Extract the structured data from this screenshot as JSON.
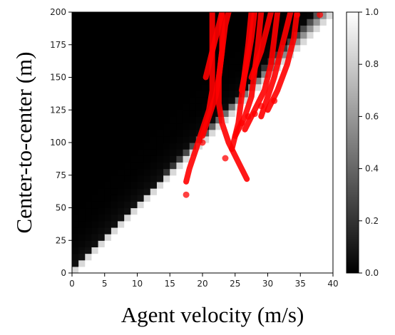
{
  "chart_data": {
    "type": "heatmap",
    "title": "",
    "xlabel": "Agent velocity (m/s)",
    "ylabel": "Center-to-center (m)",
    "xlim": [
      0,
      40
    ],
    "ylim": [
      0,
      200
    ],
    "x_ticks": [
      "0",
      "5",
      "10",
      "15",
      "20",
      "25",
      "30",
      "35",
      "40"
    ],
    "y_ticks": [
      "0",
      "25",
      "50",
      "75",
      "100",
      "125",
      "150",
      "175",
      "200"
    ],
    "grid": false,
    "legend": "none",
    "heatmap": {
      "colormap": "gray",
      "description_regions": [
        {
          "note": "lower-right boundary",
          "slope_m_per_mps": 5.0,
          "intercept_m": 0,
          "value_below": 1.0
        },
        {
          "note": "upper-left light band",
          "value": 0.8
        }
      ],
      "grid_cols": 40,
      "grid_rows": 40
    },
    "colorbar": {
      "range": [
        0.0,
        1.0
      ],
      "ticks": [
        "0.0",
        "0.2",
        "0.4",
        "0.6",
        "0.8",
        "1.0"
      ]
    },
    "overlay": {
      "name": "",
      "color": "#ff0000",
      "trajectories": [
        [
          [
            17.5,
            70
          ],
          [
            18,
            80
          ],
          [
            19,
            95
          ],
          [
            20,
            110
          ],
          [
            21,
            125
          ],
          [
            21.5,
            140
          ],
          [
            21.5,
            160
          ],
          [
            21.5,
            180
          ],
          [
            21.5,
            200
          ]
        ],
        [
          [
            20,
            105
          ],
          [
            21,
            120
          ],
          [
            22,
            135
          ],
          [
            22.5,
            150
          ],
          [
            23,
            170
          ],
          [
            23.5,
            190
          ],
          [
            24,
            200
          ]
        ],
        [
          [
            26.8,
            72
          ],
          [
            25.5,
            85
          ],
          [
            24,
            100
          ],
          [
            23,
            115
          ],
          [
            22.5,
            130
          ],
          [
            22.5,
            150
          ],
          [
            23,
            170
          ],
          [
            23,
            200
          ]
        ],
        [
          [
            24.5,
            95
          ],
          [
            25.5,
            115
          ],
          [
            26,
            135
          ],
          [
            26.5,
            155
          ],
          [
            27,
            175
          ],
          [
            27.5,
            200
          ]
        ],
        [
          [
            25,
            105
          ],
          [
            26.5,
            120
          ],
          [
            27.5,
            135
          ],
          [
            28,
            155
          ],
          [
            28.5,
            175
          ],
          [
            29,
            200
          ]
        ],
        [
          [
            26.5,
            110
          ],
          [
            28,
            125
          ],
          [
            29.5,
            140
          ],
          [
            30.5,
            160
          ],
          [
            31,
            180
          ],
          [
            31.5,
            200
          ]
        ],
        [
          [
            29,
            120
          ],
          [
            30,
            135
          ],
          [
            31,
            150
          ],
          [
            32,
            170
          ],
          [
            33,
            190
          ],
          [
            33.5,
            200
          ]
        ],
        [
          [
            30,
            125
          ],
          [
            31.5,
            140
          ],
          [
            33,
            160
          ],
          [
            34,
            180
          ],
          [
            34.5,
            200
          ]
        ],
        [
          [
            20.5,
            150
          ],
          [
            21.5,
            170
          ],
          [
            22.5,
            190
          ],
          [
            23,
            200
          ]
        ],
        [
          [
            26,
            140
          ],
          [
            26.8,
            160
          ],
          [
            27.5,
            180
          ],
          [
            28,
            200
          ]
        ],
        [
          [
            27.5,
            150
          ],
          [
            29,
            170
          ],
          [
            30,
            190
          ],
          [
            30.5,
            200
          ]
        ]
      ],
      "points": [
        [
          17.5,
          60
        ],
        [
          20,
          100
        ],
        [
          23.5,
          88
        ],
        [
          26,
          115
        ],
        [
          27,
          120
        ],
        [
          28,
          122
        ],
        [
          29,
          128
        ],
        [
          31,
          132
        ],
        [
          34.5,
          198
        ],
        [
          38,
          198
        ]
      ]
    }
  }
}
